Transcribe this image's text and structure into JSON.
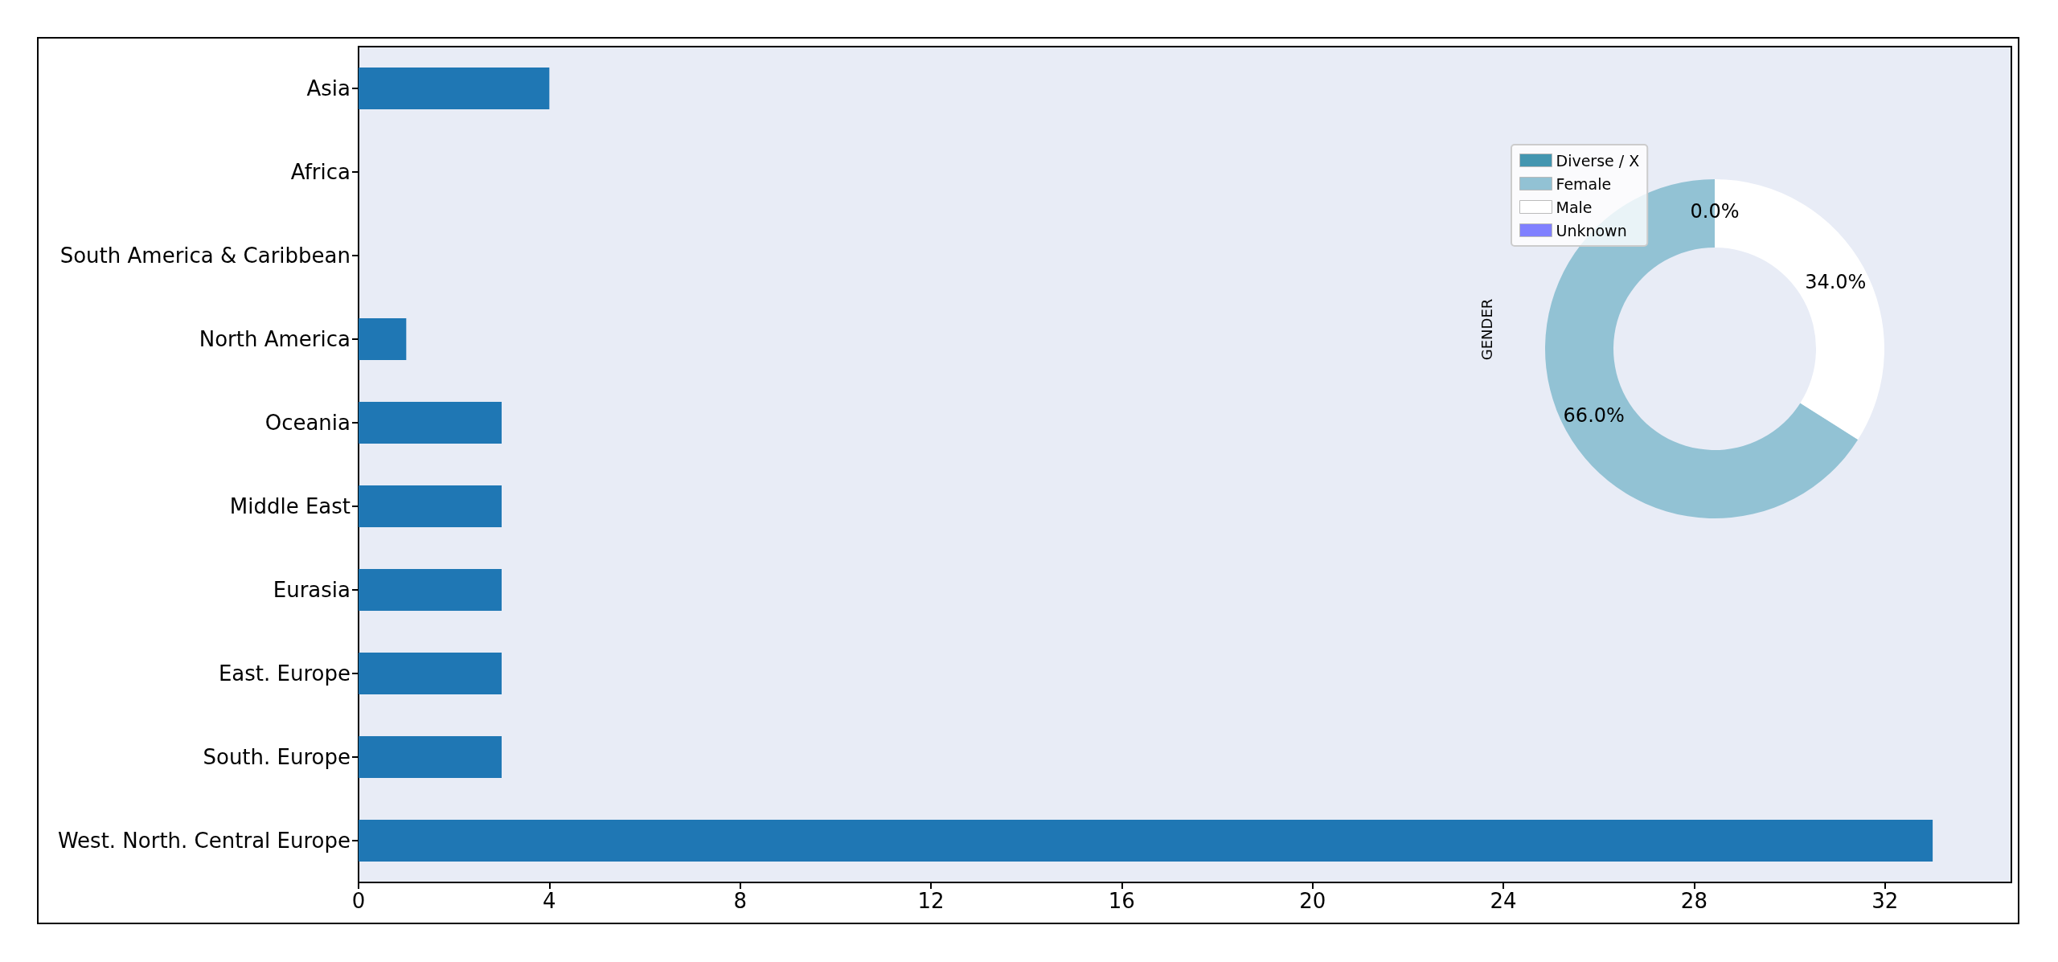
{
  "chart_data": [
    {
      "type": "bar",
      "orientation": "horizontal",
      "categories": [
        "Asia",
        "Africa",
        "South America & Caribbean",
        "North America",
        "Oceania",
        "Middle East",
        "Eurasia",
        "East. Europe",
        "South. Europe",
        "West. North. Central Europe"
      ],
      "values": [
        4,
        0,
        0,
        1,
        3,
        3,
        3,
        3,
        3,
        33
      ],
      "color": "#1f77b4",
      "xlim": [
        0,
        34.65
      ],
      "xticks": [
        0,
        4,
        8,
        12,
        16,
        20,
        24,
        28,
        32
      ],
      "grid": false,
      "legend": false
    },
    {
      "type": "donut",
      "ylabel": "GENDER",
      "categories": [
        "Diverse / X",
        "Female",
        "Male",
        "Unknown"
      ],
      "values": [
        0,
        66,
        34,
        0
      ],
      "colors": [
        "#4496b0",
        "#92c2d4",
        "#ffffff",
        "#8080ff"
      ],
      "value_labels": [
        "0.0%",
        "66.0%",
        "34.0%",
        null
      ],
      "legend": "top left"
    }
  ]
}
